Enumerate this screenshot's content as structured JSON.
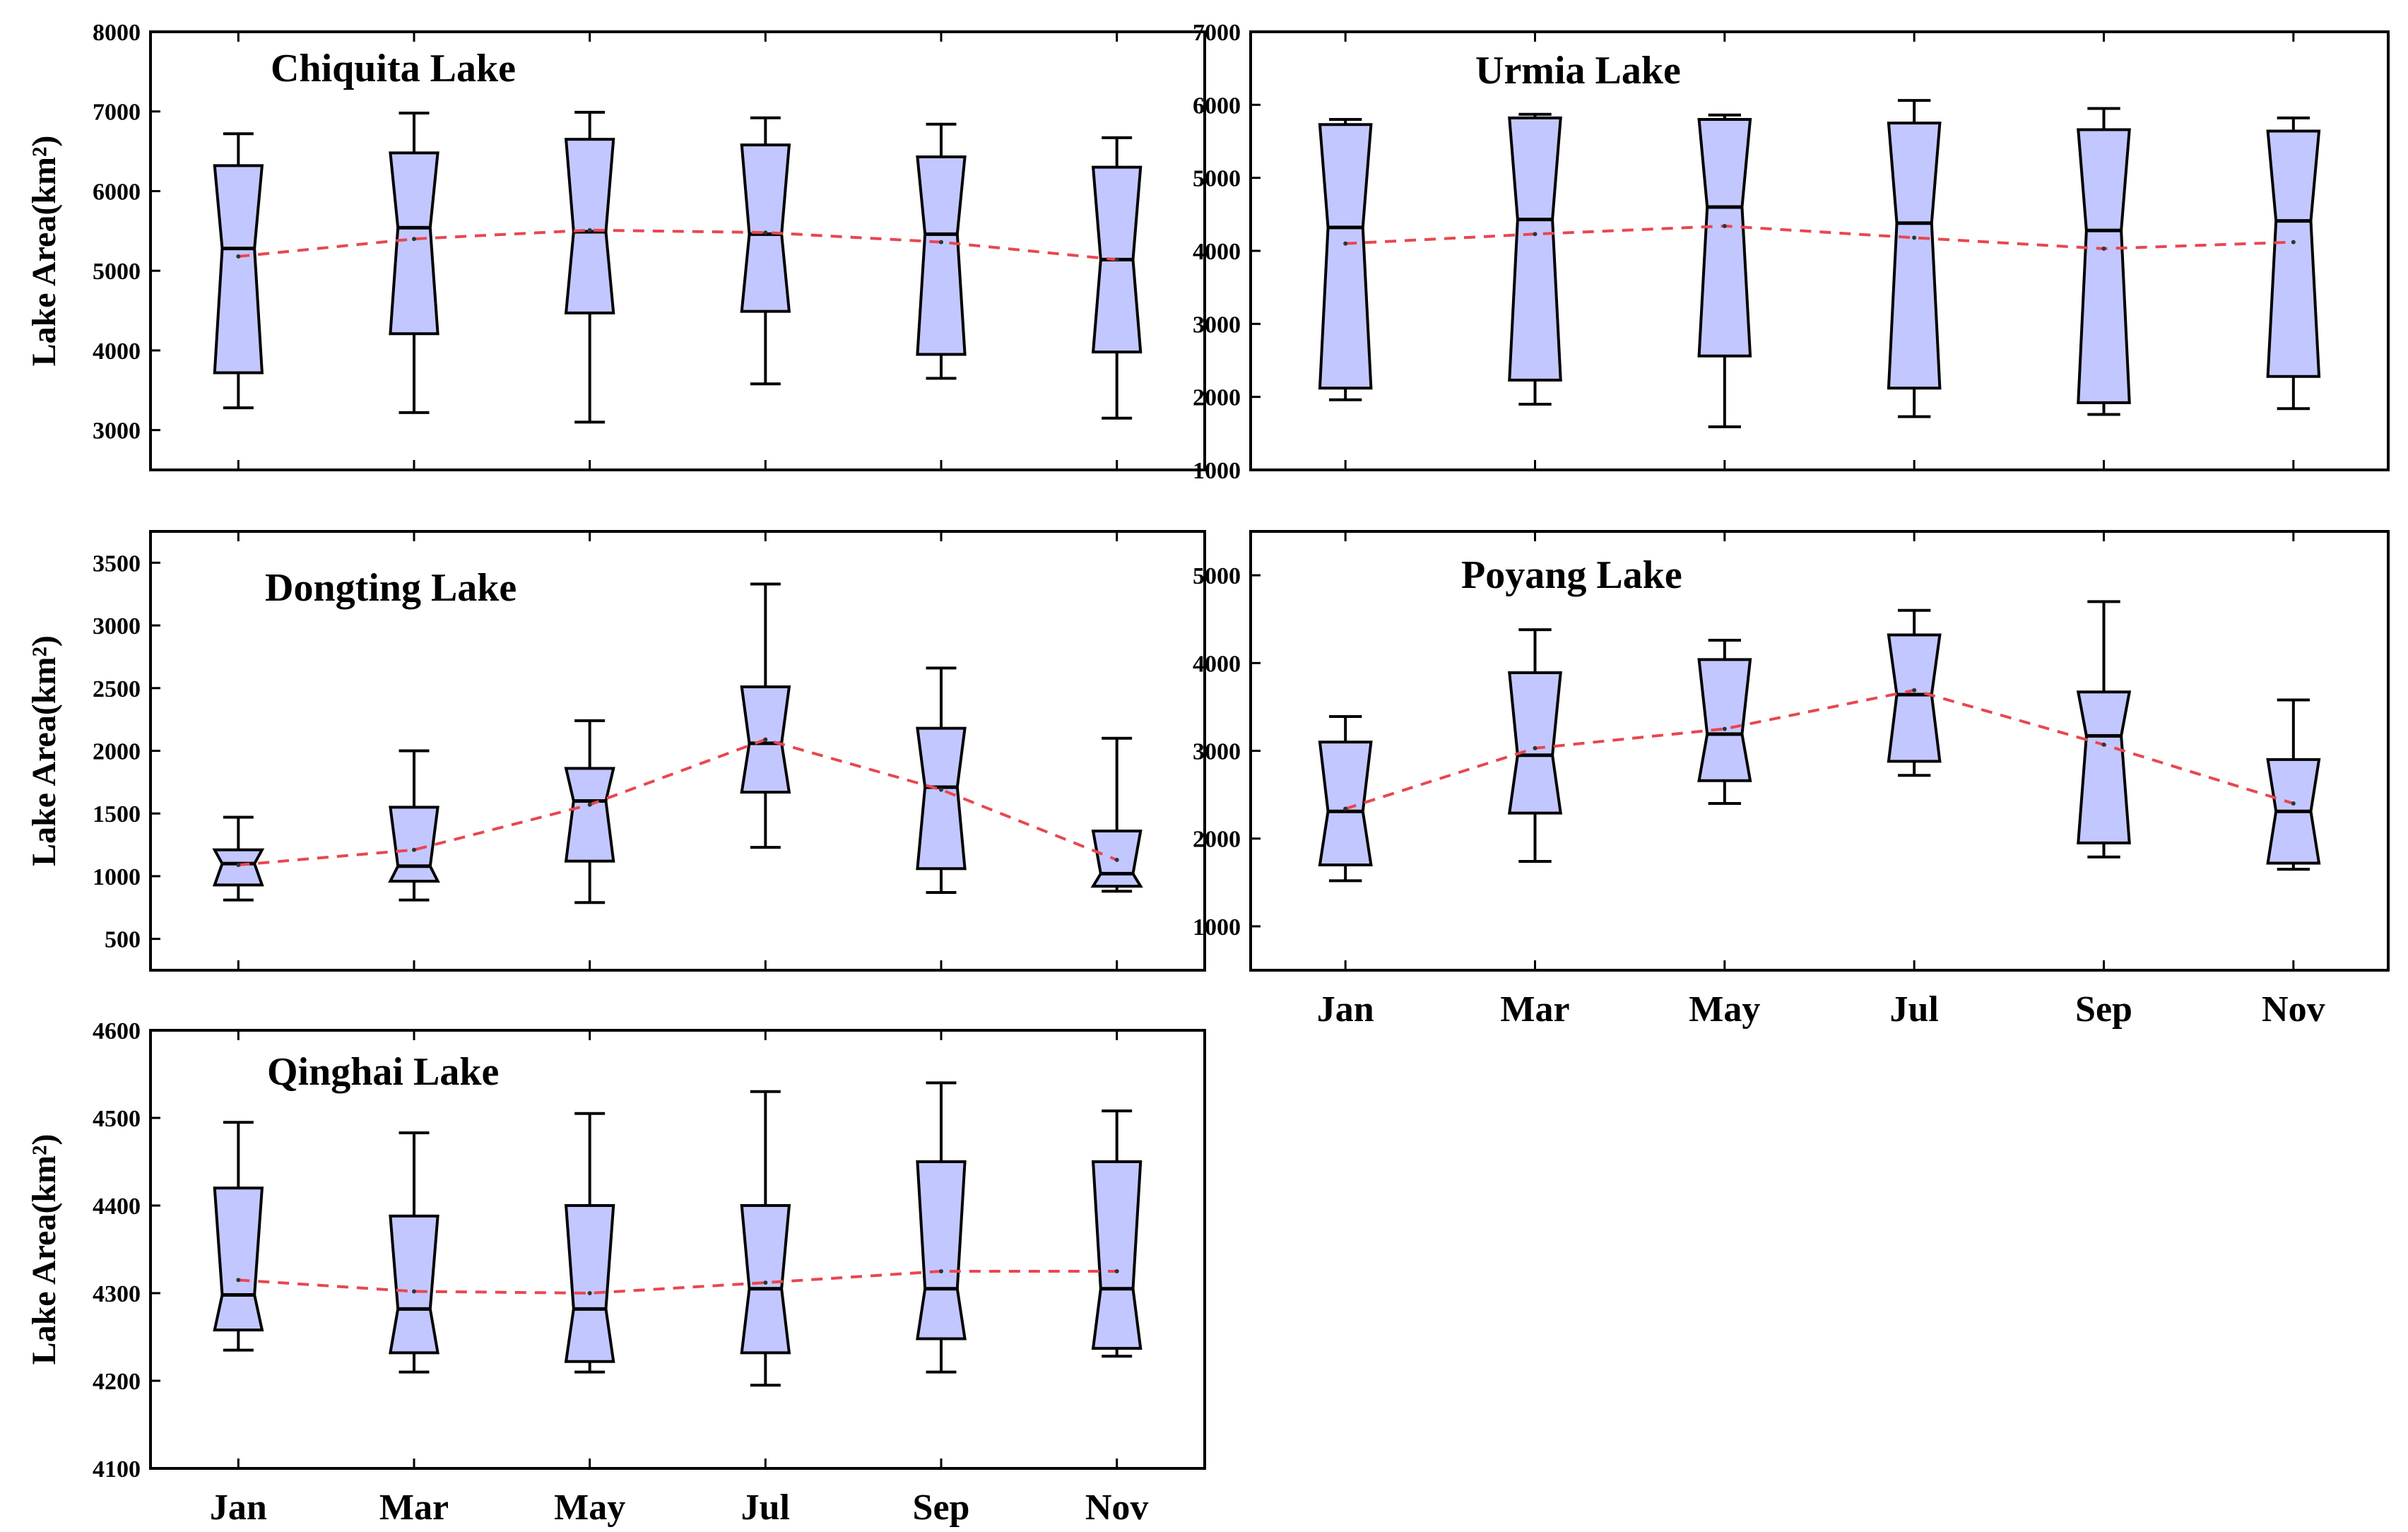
{
  "colors": {
    "box_fill": "#c3c7ff",
    "box_stroke": "#000000",
    "mean_line": "#e8474f",
    "frame": "#000000"
  },
  "chart_data": [
    {
      "type": "box",
      "title": "Chiquita Lake",
      "ylabel": "Lake Area(km²)",
      "ylim": [
        2500,
        8000
      ],
      "yticks": [
        3000,
        4000,
        5000,
        6000,
        7000,
        8000
      ],
      "categories": [
        "Jan",
        "Mar",
        "May",
        "Jul",
        "Sep",
        "Nov"
      ],
      "show_xticks": false,
      "whisker_low": [
        3280,
        3220,
        3100,
        3580,
        3650,
        3150
      ],
      "q1": [
        3720,
        4210,
        4470,
        4490,
        3950,
        3980
      ],
      "median": [
        5280,
        5540,
        5490,
        5460,
        5460,
        5140
      ],
      "q3": [
        6320,
        6480,
        6650,
        6580,
        6430,
        6300
      ],
      "whisker_high": [
        6720,
        6980,
        6990,
        6920,
        6840,
        6670
      ],
      "mean": [
        5180,
        5400,
        5510,
        5480,
        5360,
        5140
      ]
    },
    {
      "type": "box",
      "title": "Urmia Lake",
      "ylabel": "",
      "ylim": [
        1000,
        7000
      ],
      "yticks": [
        1000,
        2000,
        3000,
        4000,
        5000,
        6000,
        7000
      ],
      "categories": [
        "Jan",
        "Mar",
        "May",
        "Jul",
        "Sep",
        "Nov"
      ],
      "show_xticks": false,
      "whisker_low": [
        1960,
        1900,
        1590,
        1730,
        1760,
        1840
      ],
      "q1": [
        2120,
        2230,
        2560,
        2120,
        1920,
        2280
      ],
      "median": [
        4320,
        4430,
        4600,
        4380,
        4280,
        4410
      ],
      "q3": [
        5730,
        5820,
        5800,
        5750,
        5660,
        5640
      ],
      "whisker_high": [
        5800,
        5870,
        5860,
        6060,
        5950,
        5820
      ],
      "mean": [
        4100,
        4230,
        4340,
        4180,
        4030,
        4120
      ]
    },
    {
      "type": "box",
      "title": "Dongting Lake",
      "ylabel": "Lake Area(km²)",
      "ylim": [
        250,
        3750
      ],
      "yticks": [
        500,
        1000,
        1500,
        2000,
        2500,
        3000,
        3500
      ],
      "categories": [
        "Jan",
        "Mar",
        "May",
        "Jul",
        "Sep",
        "Nov"
      ],
      "show_xticks": false,
      "whisker_low": [
        810,
        810,
        790,
        1230,
        870,
        880
      ],
      "q1": [
        930,
        960,
        1120,
        1670,
        1060,
        920
      ],
      "median": [
        1100,
        1080,
        1600,
        2060,
        1710,
        1020
      ],
      "q3": [
        1210,
        1550,
        1860,
        2510,
        2180,
        1360
      ],
      "whisker_high": [
        1470,
        2000,
        2240,
        3330,
        2660,
        2100
      ],
      "mean": [
        1090,
        1210,
        1570,
        2090,
        1690,
        1130
      ]
    },
    {
      "type": "box",
      "title": "Poyang Lake",
      "ylabel": "",
      "ylim": [
        500,
        5500
      ],
      "yticks": [
        1000,
        2000,
        3000,
        4000,
        5000
      ],
      "categories": [
        "Jan",
        "Mar",
        "May",
        "Jul",
        "Sep",
        "Nov"
      ],
      "show_xticks": true,
      "whisker_low": [
        1520,
        1740,
        2400,
        2720,
        1790,
        1650
      ],
      "q1": [
        1700,
        2290,
        2660,
        2880,
        1950,
        1720
      ],
      "median": [
        2310,
        2950,
        3190,
        3640,
        3170,
        2310
      ],
      "q3": [
        3100,
        3890,
        4040,
        4320,
        3670,
        2900
      ],
      "whisker_high": [
        3390,
        4380,
        4260,
        4600,
        4700,
        3580
      ],
      "mean": [
        2340,
        3030,
        3250,
        3690,
        3070,
        2400
      ]
    },
    {
      "type": "box",
      "title": "Qinghai Lake",
      "ylabel": "Lake Area(km²)",
      "ylim": [
        4100,
        4600
      ],
      "yticks": [
        4100,
        4200,
        4300,
        4400,
        4500,
        4600
      ],
      "categories": [
        "Jan",
        "Mar",
        "May",
        "Jul",
        "Sep",
        "Nov"
      ],
      "show_xticks": true,
      "whisker_low": [
        4235,
        4210,
        4210,
        4195,
        4210,
        4228
      ],
      "q1": [
        4258,
        4232,
        4222,
        4232,
        4248,
        4237
      ],
      "median": [
        4298,
        4282,
        4282,
        4305,
        4305,
        4305
      ],
      "q3": [
        4420,
        4388,
        4400,
        4400,
        4450,
        4450
      ],
      "whisker_high": [
        4495,
        4483,
        4505,
        4530,
        4540,
        4508
      ],
      "mean": [
        4315,
        4302,
        4300,
        4312,
        4325,
        4325
      ]
    }
  ]
}
